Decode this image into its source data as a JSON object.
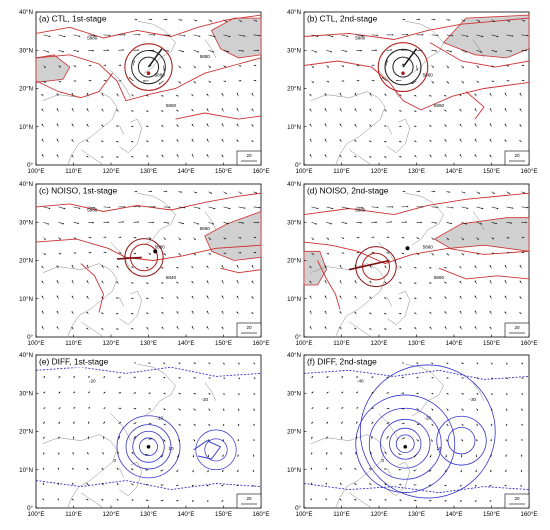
{
  "chart_data": {
    "type": "map",
    "xlabels": [
      "100°E",
      "110°E",
      "120°E",
      "130°E",
      "140°E",
      "150°E",
      "160°E"
    ],
    "ylabels": [
      "0°",
      "10°N",
      "20°N",
      "30°N",
      "40°N"
    ],
    "lon_range": [
      100,
      160
    ],
    "lat_range": [
      0,
      40
    ],
    "reference_vector": "20",
    "colors": {
      "height_contour": "#cc3333",
      "diff_contour": "#3333cc",
      "shade": "#d0d0d0",
      "track": "#7a1010"
    },
    "panels": [
      {
        "id": "a",
        "title": "(a) CTL, 1st-stage",
        "contour_labels": [
          "5880",
          "5860",
          "5860",
          "5880"
        ]
      },
      {
        "id": "b",
        "title": "(b) CTL, 2nd-stage",
        "contour_labels": [
          "5880",
          "5860",
          "5860"
        ]
      },
      {
        "id": "c",
        "title": "(c) NOISO, 1st-stage",
        "contour_labels": [
          "5860",
          "5880",
          "5840",
          "5860"
        ]
      },
      {
        "id": "d",
        "title": "(d) NOISO, 2nd-stage",
        "contour_labels": [
          "5880",
          "5860",
          "5860"
        ]
      },
      {
        "id": "e",
        "title": "(e) DIFF, 1st-stage",
        "contour_labels": [
          "-20",
          "-10",
          "10",
          "-20",
          "0"
        ]
      },
      {
        "id": "f",
        "title": "(f) DIFF, 2nd-stage",
        "contour_labels": [
          "-40",
          "-20",
          "10",
          "-30",
          "0"
        ]
      }
    ]
  }
}
